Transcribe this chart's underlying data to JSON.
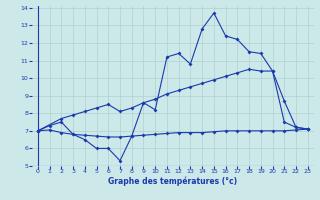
{
  "title": "Graphe des températures (°c)",
  "background_color": "#cce8e8",
  "line_color": "#1a3aad",
  "grid_color": "#b0d0d0",
  "ylim": [
    5,
    14
  ],
  "xlim": [
    -0.5,
    23.5
  ],
  "yticks": [
    5,
    6,
    7,
    8,
    9,
    10,
    11,
    12,
    13,
    14
  ],
  "xticks": [
    0,
    1,
    2,
    3,
    4,
    5,
    6,
    7,
    8,
    9,
    10,
    11,
    12,
    13,
    14,
    15,
    16,
    17,
    18,
    19,
    20,
    21,
    22,
    23
  ],
  "line1_x": [
    0,
    1,
    2,
    3,
    4,
    5,
    6,
    7,
    8,
    9,
    10,
    11,
    12,
    13,
    14,
    15,
    16,
    17,
    18,
    19,
    20,
    21,
    22,
    23
  ],
  "line1_y": [
    7.0,
    7.3,
    7.5,
    6.8,
    6.5,
    6.0,
    6.0,
    5.3,
    6.7,
    8.6,
    8.2,
    11.2,
    11.4,
    10.8,
    12.8,
    13.7,
    12.4,
    12.2,
    11.5,
    11.4,
    10.4,
    8.7,
    7.2,
    7.1
  ],
  "line2_x": [
    0,
    2,
    3,
    4,
    5,
    6,
    7,
    8,
    9,
    10,
    11,
    12,
    13,
    14,
    15,
    16,
    17,
    18,
    19,
    20,
    21,
    22,
    23
  ],
  "line2_y": [
    7.0,
    7.7,
    7.9,
    8.1,
    8.3,
    8.5,
    8.1,
    8.3,
    8.6,
    8.8,
    9.1,
    9.3,
    9.5,
    9.7,
    9.9,
    10.1,
    10.3,
    10.5,
    10.4,
    10.4,
    7.5,
    7.2,
    7.1
  ],
  "line3_x": [
    0,
    1,
    2,
    3,
    4,
    5,
    6,
    7,
    8,
    9,
    10,
    11,
    12,
    13,
    14,
    15,
    16,
    17,
    18,
    19,
    20,
    21,
    22,
    23
  ],
  "line3_y": [
    7.0,
    7.05,
    6.9,
    6.8,
    6.75,
    6.7,
    6.65,
    6.65,
    6.7,
    6.75,
    6.8,
    6.85,
    6.9,
    6.9,
    6.9,
    6.95,
    7.0,
    7.0,
    7.0,
    7.0,
    7.0,
    7.0,
    7.05,
    7.1
  ]
}
